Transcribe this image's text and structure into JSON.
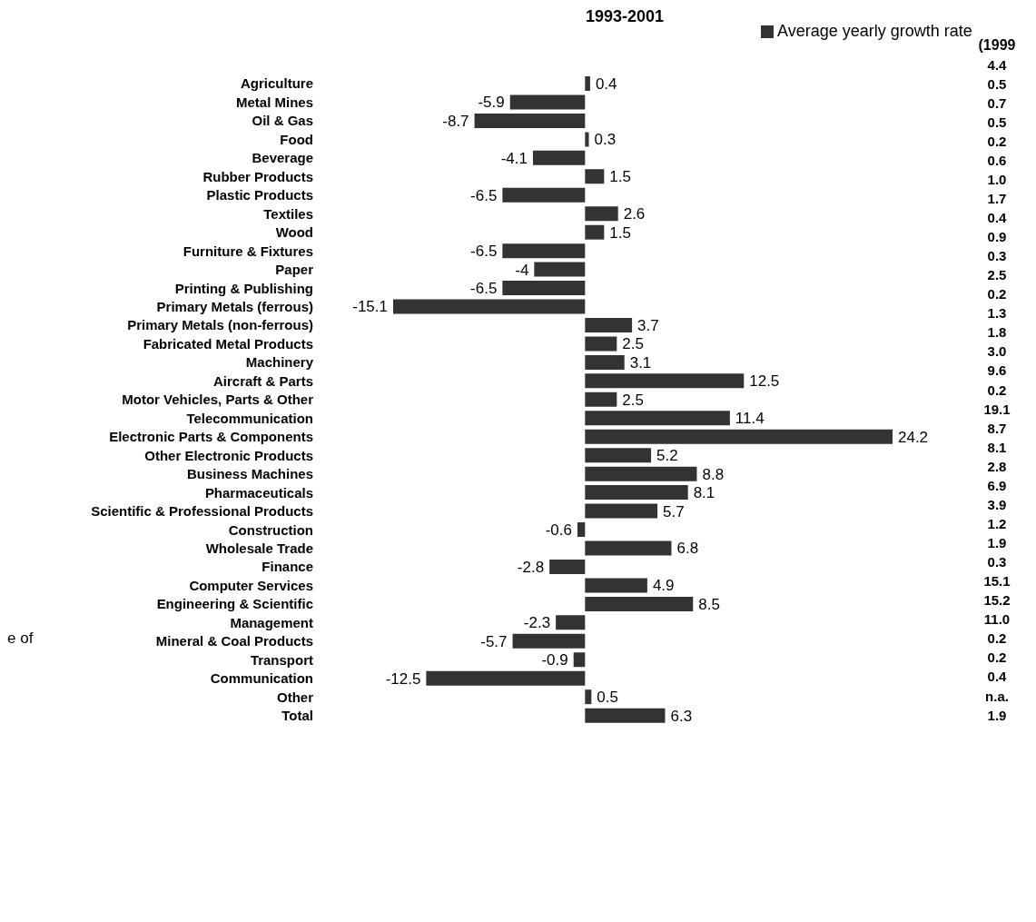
{
  "chart_data": {
    "type": "bar",
    "orientation": "horizontal",
    "title": "1993-2001",
    "legend": "top",
    "data_labels": true,
    "categories": [
      "Agriculture",
      "Metal Mines",
      "Oil & Gas",
      "Food",
      "Beverage",
      "Rubber Products",
      "Plastic Products",
      "Textiles",
      "Wood",
      "Furniture & Fixtures",
      "Paper",
      "Printing & Publishing",
      "Primary Metals (ferrous)",
      "Primary Metals (non-ferrous)",
      "Fabricated Metal Products",
      "Machinery",
      "Aircraft & Parts",
      "Motor Vehicles, Parts & Other",
      "Telecommunication",
      "Electronic Parts & Components",
      "Other Electronic Products",
      "Business Machines",
      "Pharmaceuticals",
      "Scientific & Professional Products",
      "Construction",
      "Wholesale Trade",
      "Finance",
      "Computer Services",
      "Engineering & Scientific",
      "Management",
      "Mineral & Coal Products",
      "Transport",
      "Communication",
      "Other",
      "Total"
    ],
    "series": [
      {
        "name": "Average yearly growth rate",
        "color": "#333333",
        "values": [
          0.4,
          -5.9,
          -8.7,
          0.3,
          -4.1,
          1.5,
          -6.5,
          2.6,
          1.5,
          -6.5,
          -4,
          -6.5,
          -15.1,
          3.7,
          2.5,
          3.1,
          12.5,
          2.5,
          11.4,
          24.2,
          5.2,
          8.8,
          8.1,
          5.7,
          -0.6,
          6.8,
          -2.8,
          4.9,
          8.5,
          -2.3,
          -5.7,
          -0.9,
          -12.5,
          0.5,
          6.3
        ]
      }
    ],
    "annotations": [
      "(1999",
      "4.4",
      "0.5",
      "0.7",
      "0.5",
      "0.2",
      "0.6",
      "1.0",
      "1.7",
      "0.4",
      "0.9",
      "0.3",
      "2.5",
      "0.2",
      "1.3",
      "1.8",
      "3.0",
      "9.6",
      "0.2",
      "19.1",
      "8.7",
      "8.1",
      "2.8",
      "6.9",
      "3.9",
      "1.2",
      "1.9",
      "0.3",
      "15.1",
      "15.2",
      "11.0",
      "0.2",
      "0.2",
      "0.4",
      "n.a.",
      "1.9",
      "e of"
    ]
  }
}
